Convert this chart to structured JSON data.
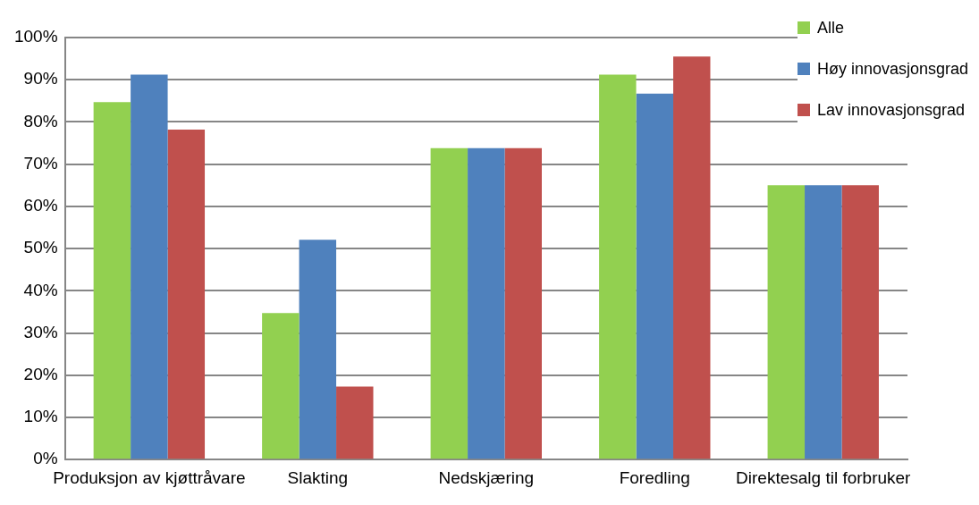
{
  "chart_data": {
    "type": "bar",
    "categories": [
      "Produksjon av kjøttråvare",
      "Slakting",
      "Nedskjæring",
      "Foredling",
      "Direktesalg til forbruker"
    ],
    "series": [
      {
        "name": "Alle",
        "color": "#92d050",
        "values": [
          84.7,
          34.7,
          73.8,
          91.2,
          65.0
        ]
      },
      {
        "name": "Høy innovasjonsgrad",
        "color": "#4f81bd",
        "values": [
          91.2,
          52.1,
          73.8,
          86.7,
          65.0
        ]
      },
      {
        "name": "Lav innovasjonsgrad",
        "color": "#c0504d",
        "values": [
          78.2,
          17.3,
          73.8,
          95.5,
          65.0
        ]
      }
    ],
    "ylim": [
      0,
      100
    ],
    "yticks": [
      {
        "value": 0,
        "label": "0%"
      },
      {
        "value": 10,
        "label": "10%"
      },
      {
        "value": 20,
        "label": "20%"
      },
      {
        "value": 30,
        "label": "30%"
      },
      {
        "value": 40,
        "label": "40%"
      },
      {
        "value": 50,
        "label": "50%"
      },
      {
        "value": 60,
        "label": "60%"
      },
      {
        "value": 70,
        "label": "70%"
      },
      {
        "value": 80,
        "label": "80%"
      },
      {
        "value": 90,
        "label": "90%"
      },
      {
        "value": 100,
        "label": "100%"
      }
    ],
    "grid": "y",
    "legend": "top right"
  }
}
